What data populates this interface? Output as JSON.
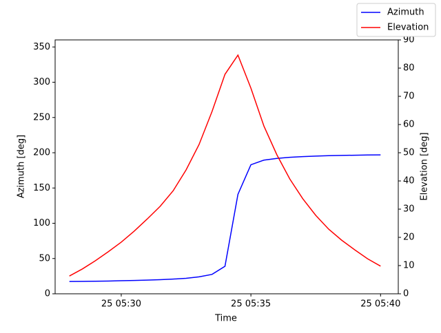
{
  "chart_data": {
    "type": "line",
    "xlabel": "Time",
    "ylabel": "Azimuth [deg]",
    "y2label": "Elevation [deg]",
    "x": [
      "25 05:28:00",
      "25 05:28:30",
      "25 05:29:00",
      "25 05:29:30",
      "25 05:30:00",
      "25 05:30:30",
      "25 05:31:00",
      "25 05:31:30",
      "25 05:32:00",
      "25 05:32:30",
      "25 05:33:00",
      "25 05:33:30",
      "25 05:34:00",
      "25 05:34:30",
      "25 05:35:00",
      "25 05:35:30",
      "25 05:36:00",
      "25 05:36:30",
      "25 05:37:00",
      "25 05:37:30",
      "25 05:38:00",
      "25 05:38:30",
      "25 05:39:00",
      "25 05:39:30",
      "25 05:40:00"
    ],
    "xlim": [
      "25 05:27:27",
      "25 05:40:41"
    ],
    "xticks": [
      {
        "value": "25 05:30:00",
        "label": "25 05:30"
      },
      {
        "value": "25 05:35:00",
        "label": "25 05:35"
      },
      {
        "value": "25 05:40:00",
        "label": "25 05:40"
      }
    ],
    "ylim": [
      0,
      360
    ],
    "yticks": [
      0,
      50,
      100,
      150,
      200,
      250,
      300,
      350
    ],
    "y2lim": [
      0,
      90
    ],
    "y2ticks": [
      0,
      10,
      20,
      30,
      40,
      50,
      60,
      70,
      80,
      90
    ],
    "legend": "upper right",
    "series": [
      {
        "name": "Azimuth",
        "color": "#0000ff",
        "values": [
          17.5,
          17.6,
          17.8,
          18.1,
          18.5,
          18.9,
          19.4,
          20,
          20.8,
          22,
          24,
          27.5,
          39,
          141,
          183,
          189.5,
          192,
          193.5,
          194.5,
          195.2,
          195.8,
          196.2,
          196.5,
          196.8,
          197
        ]
      },
      {
        "name": "Elevation",
        "color": "#ff0000",
        "axis": "y2",
        "values": [
          6.3,
          8.8,
          11.7,
          14.9,
          18.3,
          22.2,
          26.5,
          31,
          36.5,
          43.9,
          52.9,
          64.6,
          77.8,
          84.6,
          72.9,
          59.5,
          49.3,
          40.7,
          33.7,
          27.8,
          22.9,
          19,
          15.6,
          12.4,
          9.8
        ]
      }
    ]
  }
}
